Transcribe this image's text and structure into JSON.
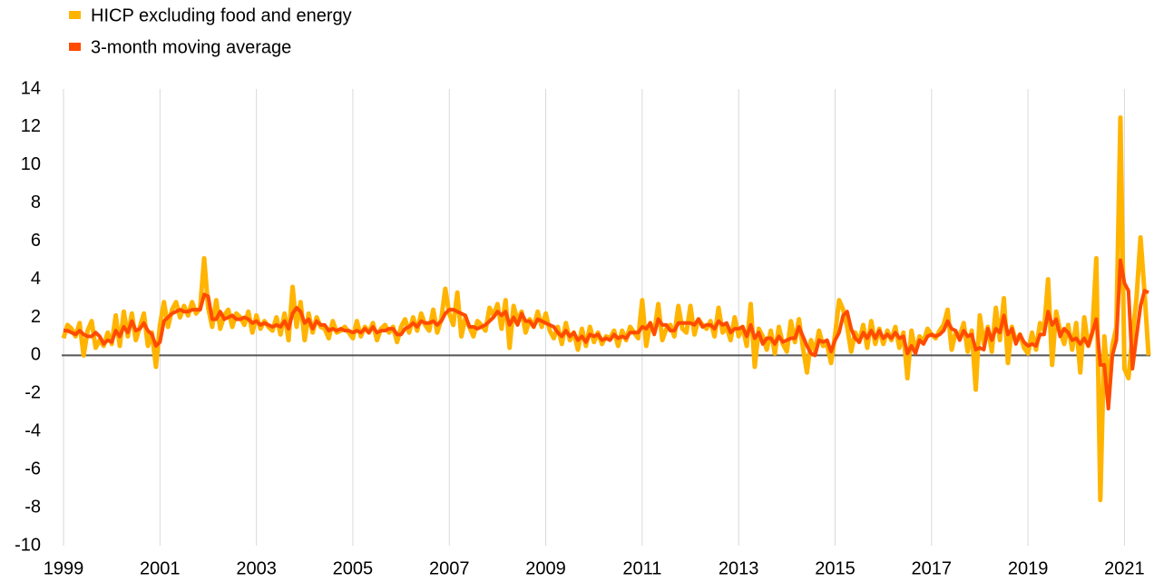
{
  "chart_data": {
    "type": "line",
    "categories": [
      "1999",
      null,
      null,
      null,
      null,
      null,
      null,
      null,
      null,
      null,
      null,
      null,
      null,
      null,
      null,
      null,
      null,
      null,
      null,
      null,
      null,
      null,
      null,
      null,
      "2001",
      null,
      null,
      null,
      null,
      null,
      null,
      null,
      null,
      null,
      null,
      null,
      null,
      null,
      null,
      null,
      null,
      null,
      null,
      null,
      null,
      null,
      null,
      null,
      "2003",
      null,
      null,
      null,
      null,
      null,
      null,
      null,
      null,
      null,
      null,
      null,
      null,
      null,
      null,
      null,
      null,
      null,
      null,
      null,
      null,
      null,
      null,
      null,
      "2005",
      null,
      null,
      null,
      null,
      null,
      null,
      null,
      null,
      null,
      null,
      null,
      null,
      null,
      null,
      null,
      null,
      null,
      null,
      null,
      null,
      null,
      null,
      null,
      "2007",
      null,
      null,
      null,
      null,
      null,
      null,
      null,
      null,
      null,
      null,
      null,
      null,
      null,
      null,
      null,
      null,
      null,
      null,
      null,
      null,
      null,
      null,
      null,
      "2009",
      null,
      null,
      null,
      null,
      null,
      null,
      null,
      null,
      null,
      null,
      null,
      null,
      null,
      null,
      null,
      null,
      null,
      null,
      null,
      null,
      null,
      null,
      null,
      "2011",
      null,
      null,
      null,
      null,
      null,
      null,
      null,
      null,
      null,
      null,
      null,
      null,
      null,
      null,
      null,
      null,
      null,
      null,
      null,
      null,
      null,
      null,
      null,
      "2013",
      null,
      null,
      null,
      null,
      null,
      null,
      null,
      null,
      null,
      null,
      null,
      null,
      null,
      null,
      null,
      null,
      null,
      null,
      null,
      null,
      null,
      null,
      null,
      "2015",
      null,
      null,
      null,
      null,
      null,
      null,
      null,
      null,
      null,
      null,
      null,
      null,
      null,
      null,
      null,
      null,
      null,
      null,
      null,
      null,
      null,
      null,
      null,
      "2017",
      null,
      null,
      null,
      null,
      null,
      null,
      null,
      null,
      null,
      null,
      null,
      null,
      null,
      null,
      null,
      null,
      null,
      null,
      null,
      null,
      null,
      null,
      null,
      "2019",
      null,
      null,
      null,
      null,
      null,
      null,
      null,
      null,
      null,
      null,
      null,
      null,
      null,
      null,
      null,
      null,
      null,
      null,
      null,
      null,
      null,
      null,
      null,
      "2021",
      null,
      null,
      null,
      null,
      null,
      null
    ],
    "series": [
      {
        "name": "HICP excluding food and energy",
        "color": "#ffb400",
        "values": [
          0.9,
          1.6,
          1.4,
          1.0,
          1.7,
          0.0,
          1.3,
          1.8,
          0.4,
          0.8,
          0.5,
          1.2,
          0.6,
          2.1,
          0.5,
          2.3,
          1.0,
          2.2,
          0.8,
          1.5,
          2.2,
          0.5,
          1.2,
          -0.6,
          1.6,
          2.8,
          1.5,
          2.4,
          2.8,
          2.0,
          2.6,
          2.1,
          2.8,
          2.2,
          2.5,
          5.1,
          2.5,
          1.5,
          2.9,
          1.4,
          2.1,
          2.4,
          1.5,
          2.2,
          2.0,
          1.6,
          2.3,
          1.2,
          2.1,
          1.4,
          1.8,
          1.5,
          1.3,
          2.0,
          1.1,
          2.2,
          0.8,
          3.6,
          1.5,
          2.8,
          0.8,
          2.2,
          1.2,
          2.0,
          1.5,
          1.4,
          0.9,
          1.8,
          1.2,
          1.3,
          1.5,
          1.2,
          0.9,
          1.8,
          1.0,
          1.5,
          1.2,
          1.7,
          0.8,
          1.4,
          1.6,
          1.2,
          1.5,
          0.7,
          1.5,
          1.9,
          1.2,
          2.0,
          1.3,
          2.2,
          1.6,
          1.3,
          2.4,
          1.2,
          1.9,
          3.5,
          2.2,
          1.6,
          3.3,
          1.0,
          2.0,
          1.5,
          1.0,
          1.8,
          1.6,
          1.3,
          2.5,
          2.1,
          2.7,
          1.4,
          2.9,
          0.4,
          2.6,
          1.8,
          2.3,
          1.2,
          1.9,
          1.5,
          2.3,
          1.5,
          2.2,
          1.3,
          0.9,
          1.5,
          0.6,
          1.7,
          0.8,
          1.2,
          0.3,
          1.4,
          0.5,
          1.5,
          0.7,
          1.2,
          0.6,
          1.0,
          0.9,
          1.3,
          0.5,
          1.3,
          0.8,
          1.5,
          1.2,
          0.9,
          2.9,
          0.5,
          1.7,
          1.2,
          2.7,
          0.8,
          1.4,
          1.6,
          1.0,
          2.6,
          1.4,
          1.2,
          2.6,
          1.1,
          1.9,
          1.6,
          1.4,
          1.8,
          1.0,
          2.5,
          1.2,
          1.5,
          0.8,
          2.0,
          1.0,
          1.5,
          0.5,
          2.7,
          -0.6,
          1.4,
          1.0,
          0.3,
          1.3,
          0.1,
          1.5,
          0.6,
          0.2,
          1.8,
          0.7,
          1.9,
          0.4,
          -0.9,
          0.8,
          0.2,
          1.3,
          0.5,
          0.6,
          -0.4,
          1.1,
          2.9,
          2.4,
          1.5,
          0.2,
          1.2,
          0.7,
          1.6,
          0.4,
          1.8,
          0.6,
          1.4,
          0.6,
          1.3,
          0.8,
          1.5,
          0.4,
          1.2,
          -1.2,
          1.3,
          0.2,
          1.0,
          0.7,
          1.4,
          1.1,
          0.9,
          1.3,
          1.6,
          2.4,
          0.3,
          1.2,
          1.0,
          1.7,
          0.2,
          1.3,
          -1.8,
          2.1,
          0.6,
          1.5,
          0.2,
          2.5,
          0.8,
          3.0,
          -0.4,
          1.5,
          0.7,
          1.1,
          0.4,
          0.1,
          1.2,
          0.3,
          1.7,
          1.3,
          4.0,
          -0.5,
          2.3,
          1.3,
          0.6,
          1.6,
          0.3,
          1.7,
          -0.9,
          2.0,
          0.5,
          1.2,
          5.1,
          -7.6,
          1.0,
          -1.6,
          0.5,
          1.5,
          12.5,
          -0.7,
          -1.2,
          1.0,
          3.0,
          6.2,
          3.3,
          0.0
        ]
      },
      {
        "name": "3-month moving average",
        "color": "#ff4b00",
        "values": [
          1.3,
          1.3,
          1.2,
          1.1,
          1.3,
          1.1,
          1.0,
          1.0,
          1.2,
          1.0,
          0.6,
          0.8,
          0.7,
          1.3,
          1.0,
          1.5,
          1.2,
          1.8,
          1.3,
          1.4,
          1.7,
          1.3,
          1.1,
          0.5,
          0.7,
          1.8,
          2.0,
          2.2,
          2.3,
          2.4,
          2.3,
          2.3,
          2.4,
          2.4,
          2.4,
          3.2,
          3.1,
          1.9,
          1.9,
          2.3,
          1.9,
          2.0,
          2.1,
          1.9,
          1.9,
          2.0,
          1.9,
          1.7,
          1.8,
          1.6,
          1.7,
          1.6,
          1.5,
          1.6,
          1.5,
          1.8,
          1.4,
          2.2,
          2.5,
          2.3,
          1.7,
          1.9,
          1.4,
          1.8,
          1.6,
          1.6,
          1.3,
          1.4,
          1.3,
          1.4,
          1.3,
          1.3,
          1.2,
          1.3,
          1.2,
          1.4,
          1.2,
          1.5,
          1.2,
          1.3,
          1.3,
          1.4,
          1.4,
          1.1,
          1.1,
          1.4,
          1.5,
          1.7,
          1.5,
          1.8,
          1.7,
          1.7,
          1.8,
          1.6,
          1.8,
          2.2,
          2.4,
          2.4,
          2.3,
          2.2,
          2.1,
          1.5,
          1.5,
          1.4,
          1.5,
          1.6,
          1.8,
          2.0,
          2.3,
          2.1,
          2.3,
          1.6,
          2.0,
          1.6,
          2.2,
          1.8,
          1.8,
          1.5,
          1.9,
          1.8,
          1.7,
          1.6,
          1.5,
          1.2,
          1.0,
          1.3,
          1.0,
          1.2,
          0.8,
          1.0,
          0.7,
          1.1,
          1.0,
          1.1,
          0.8,
          0.9,
          0.8,
          1.1,
          0.9,
          1.0,
          0.9,
          1.2,
          1.2,
          1.2,
          1.5,
          1.4,
          1.7,
          1.1,
          1.9,
          1.6,
          1.6,
          1.3,
          1.3,
          1.7,
          1.7,
          1.7,
          1.7,
          1.6,
          1.9,
          1.5,
          1.6,
          1.6,
          1.4,
          1.8,
          1.6,
          1.7,
          1.2,
          1.4,
          1.4,
          1.5,
          1.0,
          1.6,
          0.9,
          1.2,
          0.6,
          0.9,
          0.9,
          0.6,
          1.0,
          0.7,
          0.8,
          0.9,
          0.9,
          1.5,
          1.0,
          0.5,
          0.1,
          0.0,
          0.8,
          0.7,
          0.8,
          0.2,
          0.8,
          1.2,
          2.1,
          2.3,
          1.4,
          0.9,
          0.7,
          1.2,
          0.9,
          1.3,
          0.9,
          1.3,
          0.9,
          1.1,
          0.9,
          1.2,
          0.9,
          1.0,
          0.1,
          0.5,
          0.1,
          0.8,
          0.6,
          1.0,
          1.1,
          1.0,
          1.1,
          1.3,
          1.8,
          1.4,
          1.3,
          0.8,
          1.3,
          1.0,
          1.1,
          0.3,
          0.4,
          0.3,
          1.4,
          0.8,
          1.4,
          1.2,
          2.1,
          1.1,
          1.4,
          0.6,
          1.1,
          0.7,
          0.5,
          0.6,
          0.5,
          1.1,
          1.1,
          2.3,
          1.6,
          1.9,
          1.0,
          1.4,
          1.2,
          0.8,
          0.9,
          0.6,
          0.9,
          0.5,
          1.2,
          1.9,
          -0.5,
          -0.5,
          -2.8,
          0.0,
          0.8,
          5.0,
          3.8,
          3.4,
          -0.7,
          1.0,
          2.6,
          3.4,
          3.3
        ]
      }
    ],
    "ylim": [
      -10,
      14
    ],
    "yticks": [
      -10,
      -8,
      -6,
      -4,
      -2,
      0,
      2,
      4,
      6,
      8,
      10,
      12,
      14
    ],
    "grid": true
  }
}
